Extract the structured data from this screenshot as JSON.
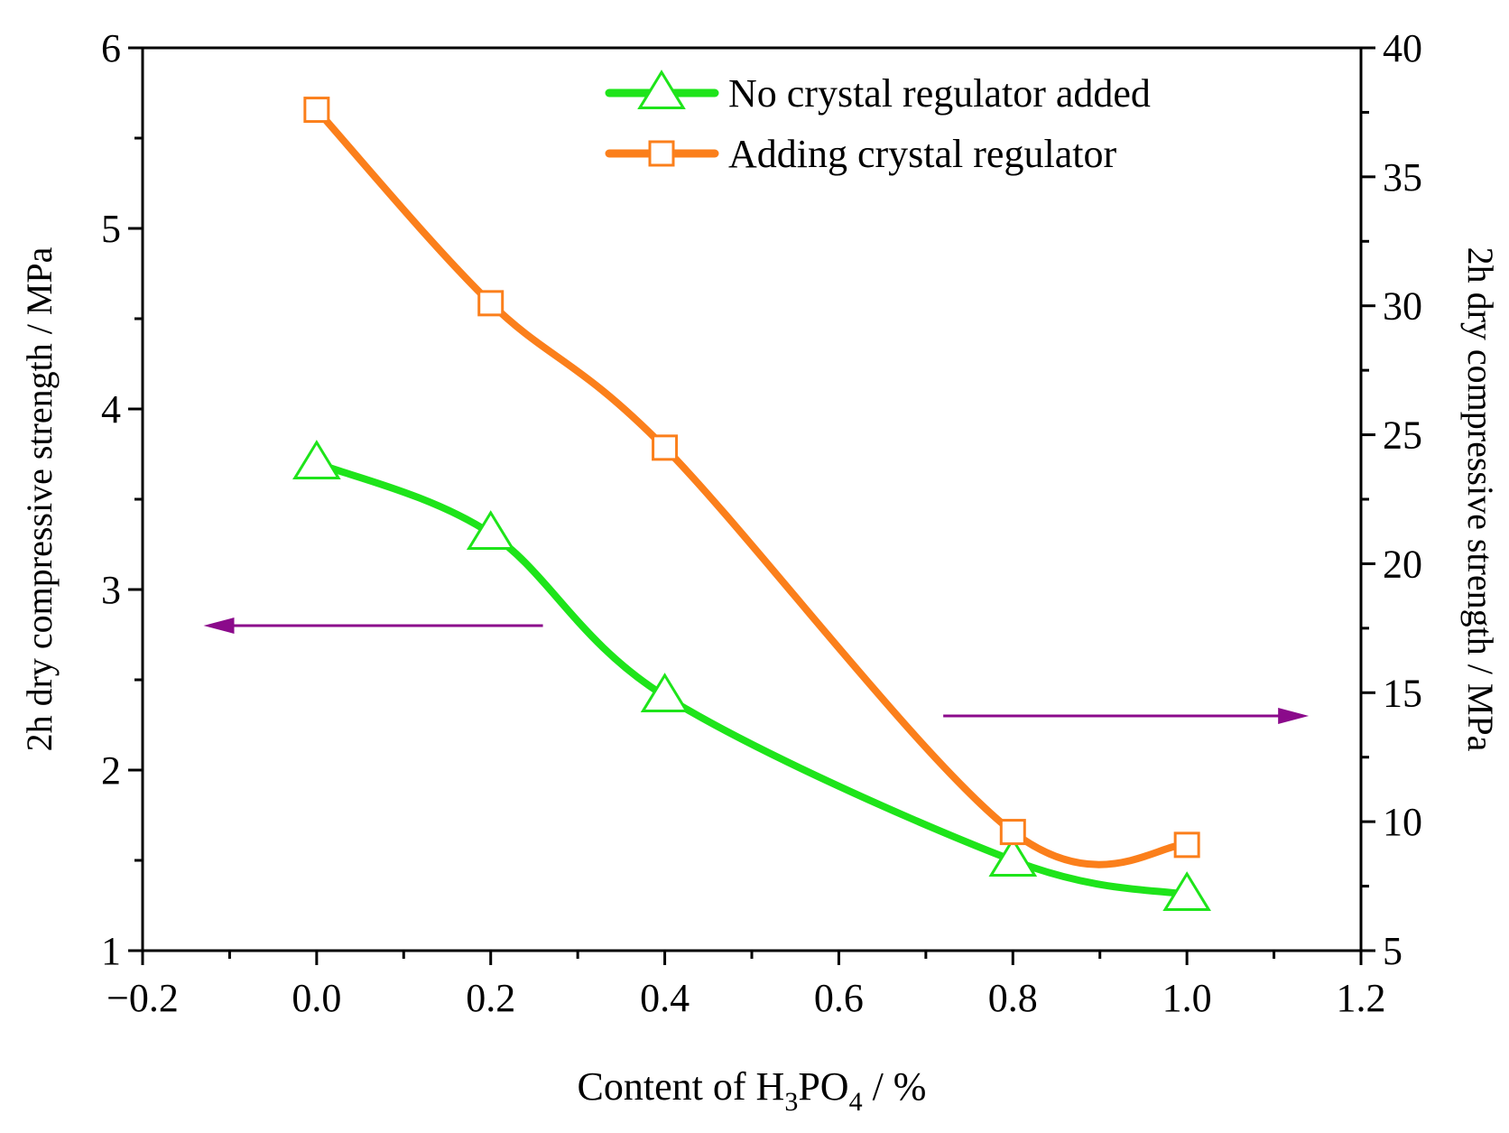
{
  "chart_data": {
    "type": "line",
    "x": [
      0.0,
      0.2,
      0.4,
      0.8,
      1.0
    ],
    "xlabel": {
      "prefix": "Content of H",
      "sub1": "3",
      "mid": "PO",
      "sub2": "4",
      "suffix": " / %"
    },
    "ylabel_left": "2h dry compressive strength / MPa",
    "ylabel_right": "2h dry compressive strength / MPa",
    "xlim": [
      -0.2,
      1.2
    ],
    "ylim_left": [
      1,
      6
    ],
    "ylim_right": [
      5,
      40
    ],
    "x_ticks": [
      -0.2,
      0.0,
      0.2,
      0.4,
      0.6,
      0.8,
      1.0,
      1.2
    ],
    "x_tick_labels": [
      "−0.2",
      "0.0",
      "0.2",
      "0.4",
      "0.6",
      "0.8",
      "1.0",
      "1.2"
    ],
    "y_left_ticks": [
      1,
      2,
      3,
      4,
      5,
      6
    ],
    "y_left_tick_labels": [
      "1",
      "2",
      "3",
      "4",
      "5",
      "6"
    ],
    "y_right_ticks": [
      5,
      10,
      15,
      20,
      25,
      30,
      35,
      40
    ],
    "y_right_tick_labels": [
      "5",
      "10",
      "15",
      "20",
      "25",
      "30",
      "35",
      "40"
    ],
    "series": [
      {
        "name": "No crystal regulator added",
        "axis": "left",
        "marker": "triangle",
        "color": "#1ee41a",
        "values": [
          3.7,
          3.31,
          2.41,
          1.5,
          1.31
        ]
      },
      {
        "name": "Adding crystal regulator",
        "axis": "right",
        "marker": "square",
        "color": "#fb7f1b",
        "values": [
          37.6,
          30.1,
          24.5,
          9.6,
          9.1
        ]
      }
    ],
    "arrows": [
      {
        "direction": "left",
        "axis": "left",
        "x_from": 0.26,
        "x_to": -0.13,
        "y": 2.8,
        "color": "#8b0a8b"
      },
      {
        "direction": "right",
        "axis": "left",
        "x_from": 0.72,
        "x_to": 1.14,
        "y": 2.3,
        "color": "#8b0a8b"
      }
    ],
    "legend": {
      "position": "top-right"
    }
  }
}
